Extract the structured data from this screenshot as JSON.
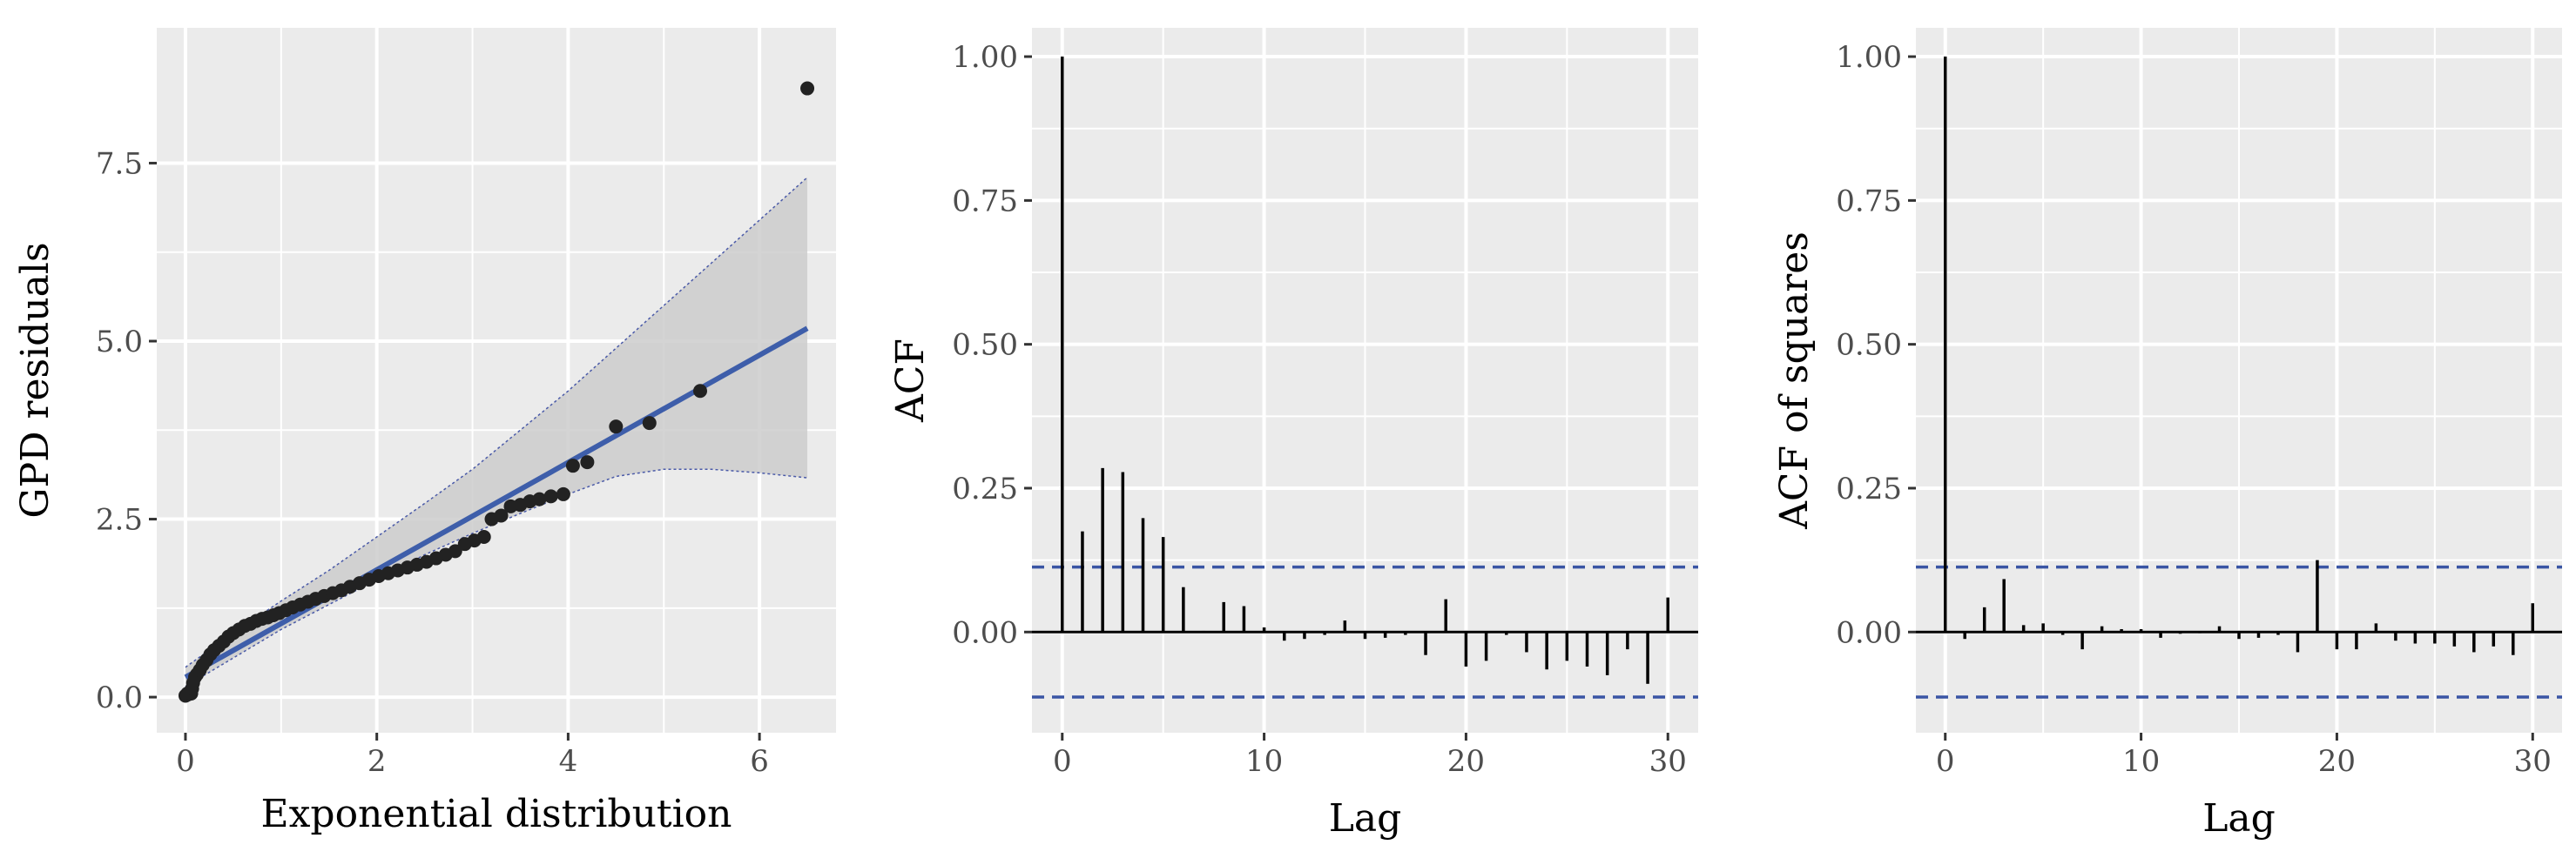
{
  "chart_data": [
    {
      "type": "scatter",
      "xlabel": "Exponential distribution",
      "ylabel": "GPD residuals",
      "xlim": [
        -0.3,
        6.8
      ],
      "ylim": [
        -0.5,
        9.4
      ],
      "xticks": [
        0,
        2,
        4,
        6
      ],
      "xtick_labels": [
        "0",
        "2",
        "4",
        "6"
      ],
      "yticks": [
        0,
        2.5,
        5,
        7.5
      ],
      "ytick_labels": [
        "0.0",
        "2.5",
        "5.0",
        "7.5"
      ],
      "grid": true,
      "points": {
        "x": [
          0.0,
          0.01,
          0.02,
          0.03,
          0.04,
          0.05,
          0.06,
          0.07,
          0.08,
          0.1,
          0.12,
          0.15,
          0.18,
          0.22,
          0.26,
          0.3,
          0.35,
          0.4,
          0.45,
          0.5,
          0.56,
          0.62,
          0.68,
          0.74,
          0.8,
          0.86,
          0.92,
          0.98,
          1.05,
          1.12,
          1.2,
          1.28,
          1.36,
          1.45,
          1.54,
          1.63,
          1.72,
          1.82,
          1.92,
          2.02,
          2.12,
          2.22,
          2.32,
          2.42,
          2.52,
          2.62,
          2.72,
          2.82,
          2.92,
          3.02,
          3.12,
          3.2,
          3.3,
          3.4,
          3.5,
          3.6,
          3.7,
          3.82,
          3.95,
          4.05,
          4.2,
          4.5,
          4.85,
          5.38,
          6.5
        ],
        "y": [
          0.02,
          0.03,
          0.05,
          0.04,
          0.06,
          0.08,
          0.05,
          0.12,
          0.2,
          0.28,
          0.32,
          0.38,
          0.45,
          0.52,
          0.6,
          0.66,
          0.72,
          0.78,
          0.85,
          0.9,
          0.95,
          1.0,
          1.03,
          1.07,
          1.1,
          1.12,
          1.15,
          1.18,
          1.22,
          1.26,
          1.3,
          1.34,
          1.38,
          1.42,
          1.46,
          1.5,
          1.55,
          1.6,
          1.65,
          1.7,
          1.74,
          1.78,
          1.82,
          1.86,
          1.9,
          1.95,
          2.0,
          2.05,
          2.15,
          2.2,
          2.25,
          2.5,
          2.55,
          2.68,
          2.7,
          2.75,
          2.78,
          2.82,
          2.85,
          3.25,
          3.3,
          3.8,
          3.85,
          4.3,
          8.55
        ]
      },
      "fit_line": {
        "x": [
          0.0,
          6.5
        ],
        "y": [
          0.28,
          5.18
        ]
      },
      "confidence_band": {
        "x": [
          0.0,
          0.5,
          1.0,
          1.5,
          2.0,
          2.5,
          3.0,
          3.5,
          4.0,
          4.5,
          5.0,
          5.5,
          6.0,
          6.5
        ],
        "upper": [
          0.42,
          0.9,
          1.35,
          1.78,
          2.25,
          2.72,
          3.2,
          3.75,
          4.3,
          4.9,
          5.5,
          6.1,
          6.7,
          7.3
        ],
        "lower": [
          0.15,
          0.55,
          0.95,
          1.3,
          1.65,
          2.0,
          2.3,
          2.58,
          2.85,
          3.1,
          3.2,
          3.2,
          3.15,
          3.08
        ]
      },
      "colors": {
        "points": "#222222",
        "fit_line": "#3e5eaa",
        "band_fill": "#cccccc",
        "band_edge": "#4a5aa8",
        "panel_bg": "#ebebeb",
        "grid": "#ffffff"
      }
    },
    {
      "type": "bar",
      "xlabel": "Lag",
      "ylabel": "ACF",
      "xlim": [
        -1.5,
        31.5
      ],
      "ylim": [
        -0.175,
        1.05
      ],
      "xticks": [
        0,
        10,
        20,
        30
      ],
      "xtick_labels": [
        "0",
        "10",
        "20",
        "30"
      ],
      "yticks": [
        0,
        0.25,
        0.5,
        0.75,
        1.0
      ],
      "ytick_labels": [
        "0.00",
        "0.25",
        "0.50",
        "0.75",
        "1.00"
      ],
      "grid": true,
      "lags": [
        0,
        1,
        2,
        3,
        4,
        5,
        6,
        7,
        8,
        9,
        10,
        11,
        12,
        13,
        14,
        15,
        16,
        17,
        18,
        19,
        20,
        21,
        22,
        23,
        24,
        25,
        26,
        27,
        28,
        29,
        30
      ],
      "values": [
        1.0,
        0.175,
        0.285,
        0.278,
        0.198,
        0.165,
        0.078,
        0.002,
        0.052,
        0.045,
        0.008,
        -0.015,
        -0.012,
        -0.005,
        0.02,
        -0.012,
        -0.01,
        -0.005,
        -0.04,
        0.057,
        -0.06,
        -0.05,
        -0.005,
        -0.035,
        -0.065,
        -0.05,
        -0.06,
        -0.075,
        -0.03,
        -0.09,
        0.06
      ],
      "conf_bounds": [
        0.113,
        -0.113
      ],
      "colors": {
        "bars": "#000000",
        "conf_lines": "#3a55a4",
        "panel_bg": "#ebebeb",
        "grid": "#ffffff"
      }
    },
    {
      "type": "bar",
      "xlabel": "Lag",
      "ylabel": "ACF of squares",
      "xlim": [
        -1.5,
        31.5
      ],
      "ylim": [
        -0.175,
        1.05
      ],
      "xticks": [
        0,
        10,
        20,
        30
      ],
      "xtick_labels": [
        "0",
        "10",
        "20",
        "30"
      ],
      "yticks": [
        0,
        0.25,
        0.5,
        0.75,
        1.0
      ],
      "ytick_labels": [
        "0.00",
        "0.25",
        "0.50",
        "0.75",
        "1.00"
      ],
      "grid": true,
      "lags": [
        0,
        1,
        2,
        3,
        4,
        5,
        6,
        7,
        8,
        9,
        10,
        11,
        12,
        13,
        14,
        15,
        16,
        17,
        18,
        19,
        20,
        21,
        22,
        23,
        24,
        25,
        26,
        27,
        28,
        29,
        30
      ],
      "values": [
        1.0,
        -0.012,
        0.043,
        0.092,
        0.012,
        0.015,
        -0.005,
        -0.03,
        0.01,
        0.005,
        0.005,
        -0.01,
        -0.003,
        -0.002,
        0.01,
        -0.012,
        -0.01,
        -0.005,
        -0.035,
        0.125,
        -0.03,
        -0.03,
        0.015,
        -0.015,
        -0.02,
        -0.02,
        -0.025,
        -0.035,
        -0.025,
        -0.04,
        0.05
      ],
      "conf_bounds": [
        0.113,
        -0.113
      ],
      "colors": {
        "bars": "#000000",
        "conf_lines": "#3a55a4",
        "panel_bg": "#ebebeb",
        "grid": "#ffffff"
      }
    }
  ]
}
